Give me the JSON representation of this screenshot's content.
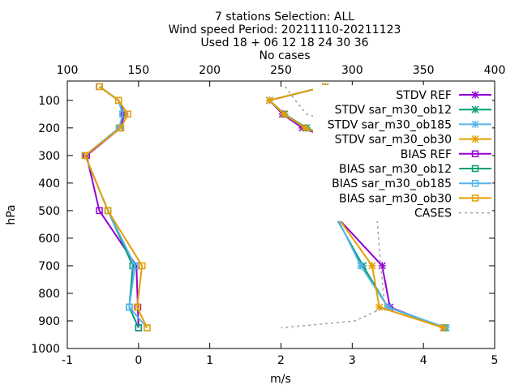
{
  "chart_data": {
    "type": "line",
    "title_lines": [
      "7 stations Selection: ALL",
      "Wind speed  Period: 20211110-20211123",
      "Used 18 + 06 12 18 24 30 36",
      "No cases"
    ],
    "xlabel": "m/s",
    "ylabel": "hPa",
    "xlim": [
      -1,
      5
    ],
    "ylim": [
      1000,
      30
    ],
    "x2lim": [
      100,
      400
    ],
    "x_ticks": [
      "-1",
      "0",
      "1",
      "2",
      "3",
      "4",
      "5"
    ],
    "x2_ticks": [
      "100",
      "150",
      "200",
      "250",
      "300",
      "350",
      "400"
    ],
    "y_ticks": [
      "100",
      "200",
      "300",
      "400",
      "500",
      "600",
      "700",
      "800",
      "900",
      "1000"
    ],
    "legend_position": "top-right",
    "levels": [
      50,
      100,
      150,
      200,
      300,
      500,
      700,
      850,
      925
    ],
    "series": [
      {
        "name": "STDV REF",
        "color": "#9400d3",
        "marker": "star",
        "dash": false,
        "axis": "x",
        "x": [
          2.62,
          1.84,
          2.02,
          2.3,
          3.3,
          2.7,
          3.42,
          3.53,
          4.28
        ]
      },
      {
        "name": "STDV sar_m30_ob12",
        "color": "#009e73",
        "marker": "star",
        "dash": false,
        "axis": "x",
        "x": [
          2.62,
          1.84,
          2.05,
          2.36,
          3.35,
          2.72,
          3.15,
          3.5,
          4.3
        ]
      },
      {
        "name": "STDV sar_m30_ob185",
        "color": "#56b4e9",
        "marker": "star",
        "dash": false,
        "axis": "x",
        "x": [
          2.62,
          1.84,
          2.04,
          2.34,
          3.32,
          2.74,
          3.12,
          3.5,
          4.32
        ]
      },
      {
        "name": "STDV sar_m30_ob30",
        "color": "#e69f00",
        "marker": "star",
        "dash": false,
        "axis": "x",
        "x": [
          2.62,
          1.84,
          2.04,
          2.34,
          3.32,
          2.73,
          3.28,
          3.38,
          4.28
        ]
      },
      {
        "name": "BIAS REF",
        "color": "#9400d3",
        "marker": "square",
        "dash": false,
        "axis": "x",
        "x": [
          -0.55,
          -0.28,
          -0.2,
          -0.25,
          -0.73,
          -0.55,
          -0.03,
          -0.01,
          0.0
        ]
      },
      {
        "name": "BIAS sar_m30_ob12",
        "color": "#009e73",
        "marker": "square",
        "dash": false,
        "axis": "x",
        "x": [
          -0.55,
          -0.28,
          -0.22,
          -0.27,
          -0.75,
          -0.43,
          -0.08,
          -0.13,
          0.0
        ]
      },
      {
        "name": "BIAS sar_m30_ob185",
        "color": "#56b4e9",
        "marker": "square",
        "dash": false,
        "axis": "x",
        "x": [
          -0.55,
          -0.28,
          -0.22,
          -0.27,
          -0.75,
          -0.43,
          -0.05,
          -0.13,
          0.12
        ]
      },
      {
        "name": "BIAS sar_m30_ob30",
        "color": "#e69f00",
        "marker": "square",
        "dash": false,
        "axis": "x",
        "x": [
          -0.55,
          -0.28,
          -0.15,
          -0.25,
          -0.75,
          -0.43,
          0.05,
          -0.02,
          0.12
        ]
      },
      {
        "name": "CASES",
        "color": "#a0a0a0",
        "marker": "none",
        "dash": true,
        "axis": "x2",
        "x": [
          253,
          260,
          268,
          300,
          320,
          317,
          320,
          323,
          302,
          250
        ],
        "y": [
          50,
          100,
          150,
          200,
          300,
          500,
          700,
          850,
          900,
          925
        ]
      }
    ]
  }
}
